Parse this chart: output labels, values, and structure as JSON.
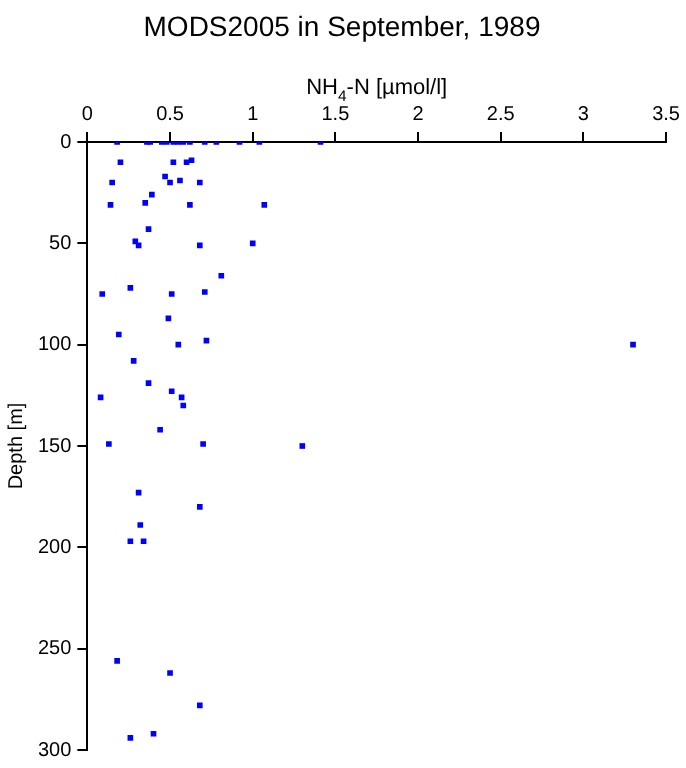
{
  "chart_data": {
    "type": "scatter",
    "title": "MODS2005 in September, 1989",
    "xlabel": "NH$_{4}$-N [µmol/l]",
    "ylabel": "Depth [m]",
    "x": [
      0.18,
      0.36,
      0.38,
      0.45,
      0.48,
      0.52,
      0.55,
      0.58,
      0.62,
      0.71,
      0.78,
      0.92,
      1.04,
      1.41,
      0.2,
      0.52,
      0.6,
      0.63,
      0.47,
      0.5,
      0.56,
      0.68,
      0.15,
      0.14,
      0.35,
      0.39,
      0.62,
      1.07,
      0.37,
      0.29,
      0.31,
      0.68,
      1.0,
      0.81,
      0.26,
      0.09,
      0.51,
      0.71,
      0.49,
      0.19,
      0.55,
      0.72,
      3.3,
      0.28,
      0.37,
      0.51,
      0.57,
      0.58,
      0.08,
      0.44,
      0.13,
      0.7,
      1.3,
      0.31,
      0.68,
      0.32,
      0.26,
      0.34,
      0.18,
      0.5,
      0.68,
      0.26,
      0.4
    ],
    "values": [
      0,
      0,
      0,
      0,
      0,
      0,
      0,
      0,
      0,
      0,
      0,
      0,
      0,
      0,
      10,
      10,
      10,
      9,
      17,
      20,
      19,
      20,
      20,
      31,
      30,
      26,
      31,
      31,
      43,
      49,
      51,
      51,
      50,
      66,
      72,
      75,
      75,
      74,
      87,
      95,
      100,
      98,
      100,
      108,
      119,
      123,
      126,
      130,
      126,
      142,
      149,
      149,
      150,
      173,
      180,
      189,
      197,
      197,
      256,
      262,
      278,
      294,
      292
    ],
    "color": "#0000ff",
    "marker": "square",
    "grid": false,
    "legend": false,
    "xlim": [
      0,
      3.5
    ],
    "xticks": [
      0,
      0.5,
      1,
      1.5,
      2,
      2.5,
      3,
      3.5
    ],
    "ylim": [
      300,
      0
    ],
    "yticks": [
      0,
      50,
      100,
      150,
      200,
      250,
      300
    ]
  }
}
